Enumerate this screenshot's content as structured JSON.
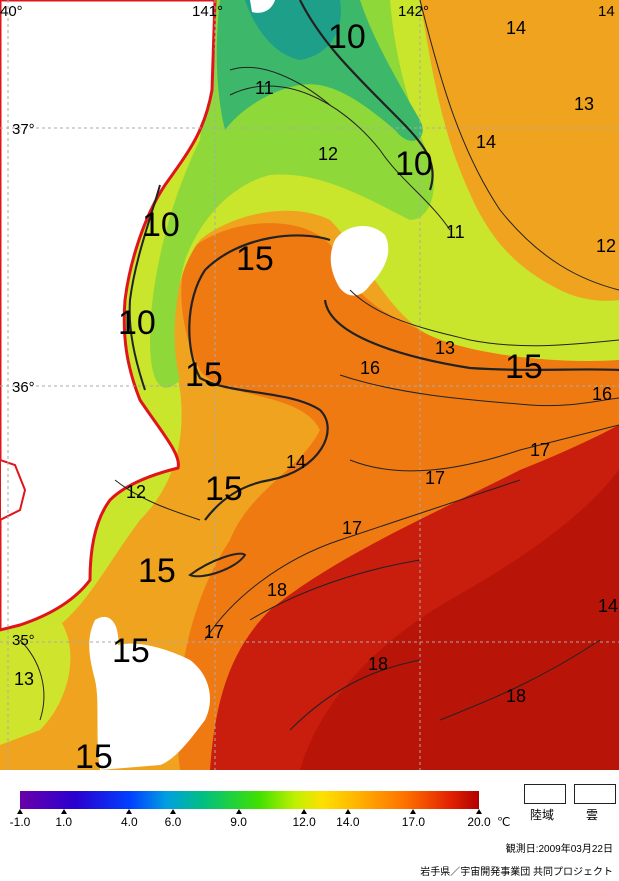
{
  "map": {
    "longitude_labels": [
      "40°",
      "141°",
      "142°",
      "14"
    ],
    "latitude_labels": [
      "37°",
      "36°",
      "35°"
    ],
    "isotherm_labels": [
      "10",
      "10",
      "10",
      "10",
      "11",
      "11",
      "12",
      "12",
      "12",
      "13",
      "13",
      "14",
      "14",
      "14",
      "15",
      "15",
      "15",
      "15",
      "15",
      "15",
      "15",
      "16",
      "16",
      "17",
      "17",
      "17",
      "17",
      "18",
      "18",
      "18",
      "13",
      "14"
    ],
    "colors": {
      "land": "#ffffff",
      "coast": "#e0151b",
      "cold": "#1c8f63",
      "cool": "#6ad13a",
      "mild": "#d2e92d",
      "warm": "#f7a81e",
      "warmer": "#f07a12",
      "hot": "#c81a0c"
    }
  },
  "legend": {
    "tick_labels": [
      "-1.0",
      "1.0",
      "4.0",
      "6.0",
      "9.0",
      "12.0",
      "14.0",
      "17.0",
      "20.0"
    ],
    "tick_values": [
      -1.0,
      1.0,
      4.0,
      6.0,
      9.0,
      12.0,
      14.0,
      17.0,
      20.0
    ],
    "unit": "℃",
    "range": [
      -1.0,
      20.0
    ],
    "land_label": "陸域",
    "cloud_label": "雲"
  },
  "footer": {
    "observation_date": "観測日:2009年03月22日",
    "credit": "岩手県／宇宙開発事業団 共同プロジェクト"
  }
}
